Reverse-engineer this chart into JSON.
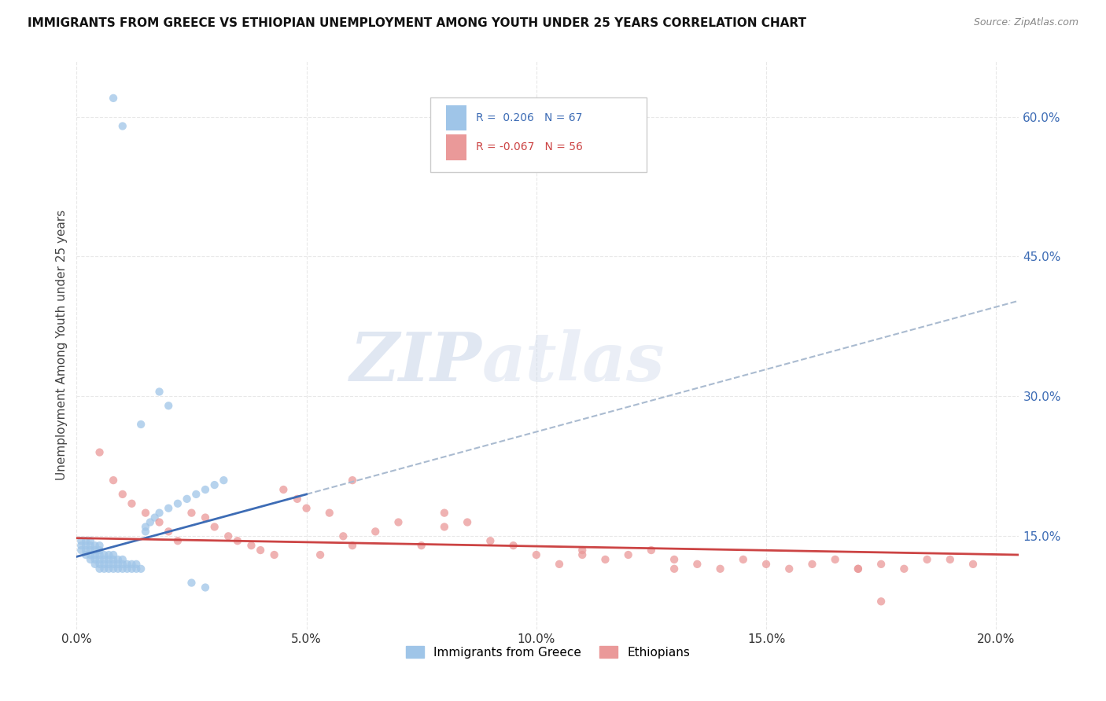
{
  "title": "IMMIGRANTS FROM GREECE VS ETHIOPIAN UNEMPLOYMENT AMONG YOUTH UNDER 25 YEARS CORRELATION CHART",
  "source": "Source: ZipAtlas.com",
  "ylabel": "Unemployment Among Youth under 25 years",
  "xlabel_ticks": [
    "0.0%",
    "5.0%",
    "10.0%",
    "15.0%",
    "20.0%"
  ],
  "xlabel_vals": [
    0.0,
    0.05,
    0.1,
    0.15,
    0.2
  ],
  "ylabel_ticks": [
    "15.0%",
    "30.0%",
    "45.0%",
    "60.0%"
  ],
  "ylabel_vals": [
    0.15,
    0.3,
    0.45,
    0.6
  ],
  "xmin": 0.0,
  "xmax": 0.205,
  "ymin": 0.05,
  "ymax": 0.66,
  "watermark_zip": "ZIP",
  "watermark_atlas": "atlas",
  "legend_blue_r": "0.206",
  "legend_blue_n": "67",
  "legend_pink_r": "-0.067",
  "legend_pink_n": "56",
  "blue_color": "#9fc5e8",
  "pink_color": "#ea9999",
  "blue_line_color": "#3d6cb5",
  "pink_line_color": "#cc4444",
  "dash_line_color": "#aabbd0",
  "grid_color": "#e8e8e8",
  "blue_scatter_x": [
    0.001,
    0.001,
    0.001,
    0.002,
    0.002,
    0.002,
    0.002,
    0.003,
    0.003,
    0.003,
    0.003,
    0.003,
    0.004,
    0.004,
    0.004,
    0.004,
    0.004,
    0.005,
    0.005,
    0.005,
    0.005,
    0.005,
    0.005,
    0.006,
    0.006,
    0.006,
    0.006,
    0.007,
    0.007,
    0.007,
    0.007,
    0.008,
    0.008,
    0.008,
    0.008,
    0.009,
    0.009,
    0.009,
    0.01,
    0.01,
    0.01,
    0.011,
    0.011,
    0.012,
    0.012,
    0.013,
    0.013,
    0.014,
    0.015,
    0.015,
    0.016,
    0.017,
    0.018,
    0.02,
    0.022,
    0.024,
    0.026,
    0.028,
    0.03,
    0.032,
    0.014,
    0.018,
    0.02,
    0.025,
    0.028,
    0.008,
    0.01
  ],
  "blue_scatter_y": [
    0.135,
    0.14,
    0.145,
    0.13,
    0.135,
    0.14,
    0.145,
    0.125,
    0.13,
    0.135,
    0.14,
    0.145,
    0.12,
    0.125,
    0.13,
    0.135,
    0.14,
    0.115,
    0.12,
    0.125,
    0.13,
    0.135,
    0.14,
    0.115,
    0.12,
    0.125,
    0.13,
    0.115,
    0.12,
    0.125,
    0.13,
    0.115,
    0.12,
    0.125,
    0.13,
    0.115,
    0.12,
    0.125,
    0.115,
    0.12,
    0.125,
    0.115,
    0.12,
    0.115,
    0.12,
    0.115,
    0.12,
    0.115,
    0.155,
    0.16,
    0.165,
    0.17,
    0.175,
    0.18,
    0.185,
    0.19,
    0.195,
    0.2,
    0.205,
    0.21,
    0.27,
    0.305,
    0.29,
    0.1,
    0.095,
    0.62,
    0.59
  ],
  "pink_scatter_x": [
    0.005,
    0.008,
    0.01,
    0.012,
    0.015,
    0.018,
    0.02,
    0.022,
    0.025,
    0.028,
    0.03,
    0.033,
    0.035,
    0.038,
    0.04,
    0.043,
    0.045,
    0.048,
    0.05,
    0.053,
    0.055,
    0.058,
    0.06,
    0.065,
    0.07,
    0.075,
    0.08,
    0.085,
    0.09,
    0.095,
    0.1,
    0.105,
    0.11,
    0.115,
    0.12,
    0.125,
    0.13,
    0.135,
    0.14,
    0.145,
    0.15,
    0.155,
    0.16,
    0.165,
    0.17,
    0.175,
    0.18,
    0.185,
    0.19,
    0.195,
    0.06,
    0.08,
    0.11,
    0.13,
    0.17,
    0.175
  ],
  "pink_scatter_y": [
    0.24,
    0.21,
    0.195,
    0.185,
    0.175,
    0.165,
    0.155,
    0.145,
    0.175,
    0.17,
    0.16,
    0.15,
    0.145,
    0.14,
    0.135,
    0.13,
    0.2,
    0.19,
    0.18,
    0.13,
    0.175,
    0.15,
    0.14,
    0.155,
    0.165,
    0.14,
    0.175,
    0.165,
    0.145,
    0.14,
    0.13,
    0.12,
    0.135,
    0.125,
    0.13,
    0.135,
    0.125,
    0.12,
    0.115,
    0.125,
    0.12,
    0.115,
    0.12,
    0.125,
    0.115,
    0.12,
    0.115,
    0.125,
    0.125,
    0.12,
    0.21,
    0.16,
    0.13,
    0.115,
    0.115,
    0.08
  ],
  "blue_line_x_start": 0.0,
  "blue_line_x_end": 0.05,
  "blue_line_y_start": 0.128,
  "blue_line_y_end": 0.195,
  "dash_line_x_start": 0.05,
  "dash_line_x_end": 0.205,
  "pink_line_x_start": 0.0,
  "pink_line_x_end": 0.205,
  "pink_line_y_start": 0.148,
  "pink_line_y_end": 0.13
}
